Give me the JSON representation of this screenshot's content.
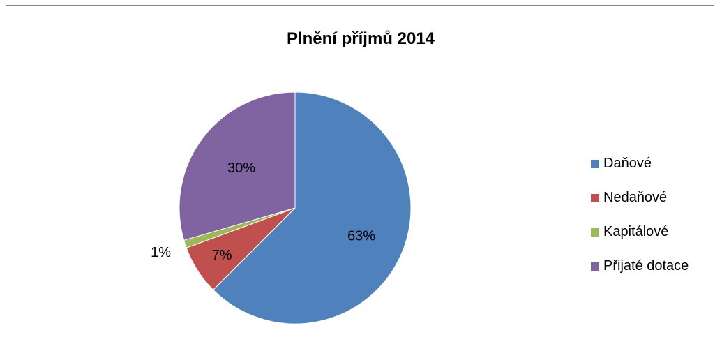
{
  "chart_data": {
    "type": "pie",
    "title": "Plnění příjmů 2014",
    "categories": [
      "Daňové",
      "Nedaňové",
      "Kapitálové",
      "Přijaté dotace"
    ],
    "values": [
      62.5,
      6.9,
      1.1,
      29.5
    ],
    "data_labels": [
      "63%",
      "7%",
      "1%",
      "30%"
    ],
    "colors": [
      "#4F81BD",
      "#C0504D",
      "#9BBB59",
      "#8064A2"
    ],
    "legend_position": "right",
    "start_angle_deg": 0,
    "direction": "clockwise"
  }
}
